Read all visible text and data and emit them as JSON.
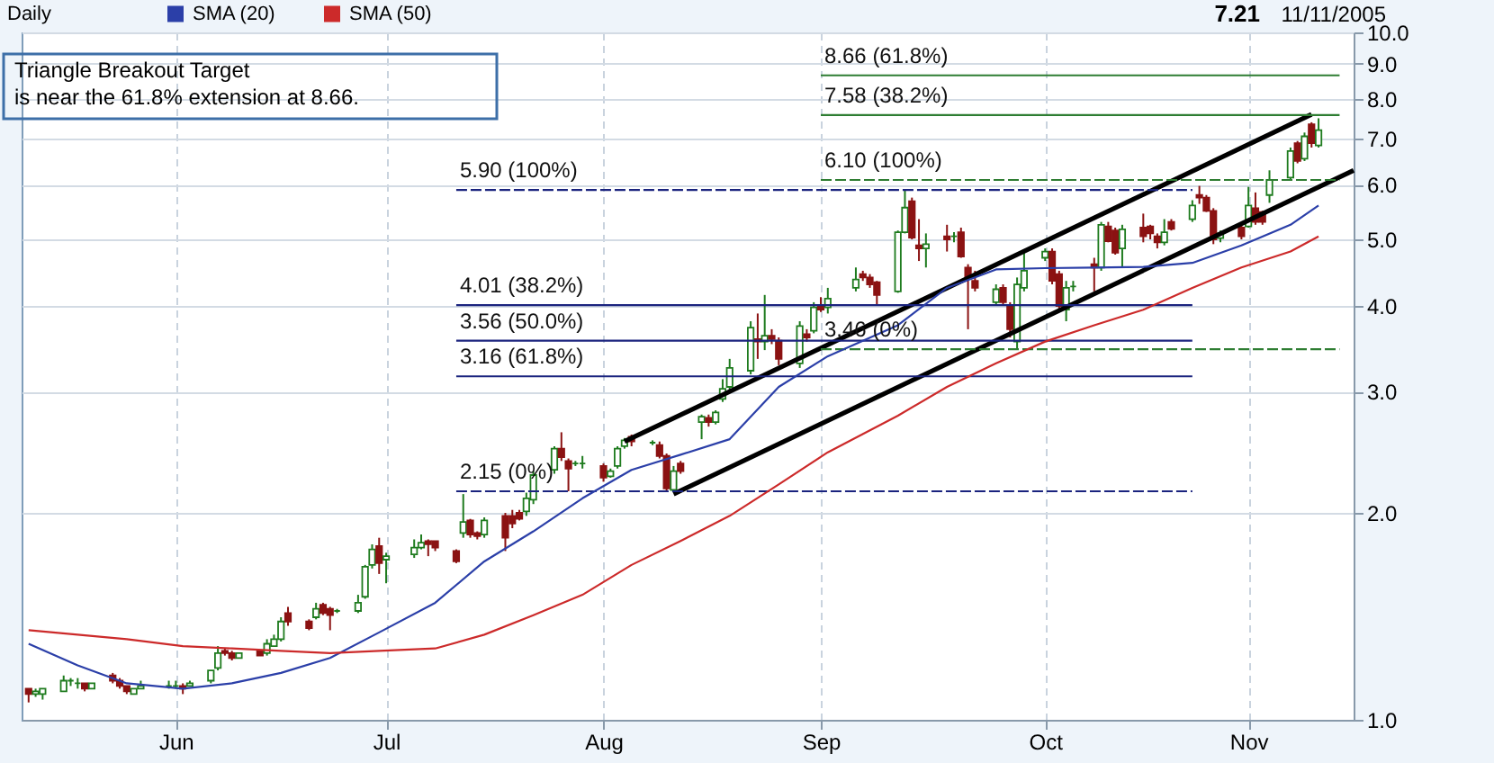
{
  "chart_data": {
    "type": "candlestick",
    "title": "Daily",
    "legend": "top left",
    "log": true,
    "grid": true,
    "xlim": [
      "2005-05-10",
      "2005-11-16"
    ],
    "xticks": [
      {
        "value": "2005-06-01",
        "label": "Jun"
      },
      {
        "value": "2005-07-01",
        "label": "Jul"
      },
      {
        "value": "2005-08-01",
        "label": "Aug"
      },
      {
        "value": "2005-09-01",
        "label": "Sep"
      },
      {
        "value": "2005-10-03",
        "label": "Oct"
      },
      {
        "value": "2005-11-01",
        "label": "Nov"
      }
    ],
    "ylim": [
      1,
      10
    ],
    "yticks": [
      {
        "value": 1,
        "label": "1.0"
      },
      {
        "value": 2,
        "label": "2.0"
      },
      {
        "value": 3,
        "label": "3.0"
      },
      {
        "value": 4,
        "label": "4.0"
      },
      {
        "value": 5,
        "label": "5.0"
      },
      {
        "value": 6,
        "label": "6.0"
      },
      {
        "value": 7,
        "label": "7.0"
      },
      {
        "value": 8,
        "label": "8.0"
      },
      {
        "value": 9,
        "label": "9.0"
      },
      {
        "value": 10,
        "label": "10.0"
      }
    ],
    "x": [
      "2005-05-11",
      "2005-05-12",
      "2005-05-13",
      "2005-05-16",
      "2005-05-17",
      "2005-05-18",
      "2005-05-19",
      "2005-05-20",
      "2005-05-23",
      "2005-05-24",
      "2005-05-25",
      "2005-05-26",
      "2005-05-27",
      "2005-05-31",
      "2005-06-01",
      "2005-06-02",
      "2005-06-03",
      "2005-06-06",
      "2005-06-07",
      "2005-06-08",
      "2005-06-09",
      "2005-06-10",
      "2005-06-13",
      "2005-06-14",
      "2005-06-15",
      "2005-06-16",
      "2005-06-17",
      "2005-06-20",
      "2005-06-21",
      "2005-06-22",
      "2005-06-23",
      "2005-06-24",
      "2005-06-27",
      "2005-06-28",
      "2005-06-29",
      "2005-06-30",
      "2005-07-01",
      "2005-07-05",
      "2005-07-06",
      "2005-07-07",
      "2005-07-08",
      "2005-07-11",
      "2005-07-12",
      "2005-07-13",
      "2005-07-14",
      "2005-07-15",
      "2005-07-18",
      "2005-07-19",
      "2005-07-20",
      "2005-07-21",
      "2005-07-22",
      "2005-07-25",
      "2005-07-26",
      "2005-07-27",
      "2005-07-28",
      "2005-07-29",
      "2005-08-01",
      "2005-08-02",
      "2005-08-03",
      "2005-08-04",
      "2005-08-05",
      "2005-08-08",
      "2005-08-09",
      "2005-08-10",
      "2005-08-11",
      "2005-08-12",
      "2005-08-15",
      "2005-08-16",
      "2005-08-17",
      "2005-08-18",
      "2005-08-19",
      "2005-08-22",
      "2005-08-23",
      "2005-08-24",
      "2005-08-25",
      "2005-08-26",
      "2005-08-29",
      "2005-08-30",
      "2005-08-31",
      "2005-09-01",
      "2005-09-02",
      "2005-09-06",
      "2005-09-07",
      "2005-09-08",
      "2005-09-09",
      "2005-09-12",
      "2005-09-13",
      "2005-09-14",
      "2005-09-15",
      "2005-09-16",
      "2005-09-19",
      "2005-09-20",
      "2005-09-21",
      "2005-09-22",
      "2005-09-23",
      "2005-09-26",
      "2005-09-27",
      "2005-09-28",
      "2005-09-29",
      "2005-09-30",
      "2005-10-03",
      "2005-10-04",
      "2005-10-05",
      "2005-10-06",
      "2005-10-07",
      "2005-10-10",
      "2005-10-11",
      "2005-10-12",
      "2005-10-13",
      "2005-10-14",
      "2005-10-17",
      "2005-10-18",
      "2005-10-19",
      "2005-10-20",
      "2005-10-21",
      "2005-10-24",
      "2005-10-25",
      "2005-10-26",
      "2005-10-27",
      "2005-10-28",
      "2005-10-31",
      "2005-11-01",
      "2005-11-02",
      "2005-11-03",
      "2005-11-04",
      "2005-11-07",
      "2005-11-08",
      "2005-11-09",
      "2005-11-10",
      "2005-11-11"
    ],
    "ohlc": [
      [
        1.11,
        1.11,
        1.06,
        1.09
      ],
      [
        1.09,
        1.11,
        1.08,
        1.1
      ],
      [
        1.09,
        1.11,
        1.07,
        1.11
      ],
      [
        1.1,
        1.16,
        1.1,
        1.14
      ],
      [
        1.14,
        1.15,
        1.12,
        1.14
      ],
      [
        1.13,
        1.15,
        1.11,
        1.13
      ],
      [
        1.13,
        1.13,
        1.1,
        1.11
      ],
      [
        1.11,
        1.13,
        1.11,
        1.13
      ],
      [
        1.16,
        1.17,
        1.13,
        1.14
      ],
      [
        1.14,
        1.15,
        1.11,
        1.12
      ],
      [
        1.12,
        1.12,
        1.09,
        1.1
      ],
      [
        1.09,
        1.11,
        1.09,
        1.11
      ],
      [
        1.11,
        1.14,
        1.11,
        1.12
      ],
      [
        1.12,
        1.14,
        1.11,
        1.12
      ],
      [
        1.12,
        1.14,
        1.11,
        1.12
      ],
      [
        1.12,
        1.13,
        1.09,
        1.11
      ],
      [
        1.12,
        1.14,
        1.12,
        1.13
      ],
      [
        1.14,
        1.18,
        1.13,
        1.18
      ],
      [
        1.19,
        1.28,
        1.18,
        1.25
      ],
      [
        1.26,
        1.27,
        1.24,
        1.25
      ],
      [
        1.25,
        1.26,
        1.22,
        1.23
      ],
      [
        1.23,
        1.25,
        1.23,
        1.25
      ],
      [
        1.26,
        1.26,
        1.24,
        1.24
      ],
      [
        1.25,
        1.31,
        1.24,
        1.29
      ],
      [
        1.28,
        1.33,
        1.28,
        1.31
      ],
      [
        1.31,
        1.41,
        1.3,
        1.39
      ],
      [
        1.43,
        1.46,
        1.37,
        1.39
      ],
      [
        1.39,
        1.4,
        1.35,
        1.36
      ],
      [
        1.41,
        1.48,
        1.4,
        1.45
      ],
      [
        1.47,
        1.48,
        1.42,
        1.43
      ],
      [
        1.45,
        1.46,
        1.35,
        1.42
      ],
      [
        1.44,
        1.45,
        1.43,
        1.44
      ],
      [
        1.44,
        1.52,
        1.43,
        1.48
      ],
      [
        1.51,
        1.68,
        1.5,
        1.67
      ],
      [
        1.68,
        1.8,
        1.66,
        1.77
      ],
      [
        1.79,
        1.84,
        1.63,
        1.69
      ],
      [
        1.71,
        1.75,
        1.58,
        1.73
      ],
      [
        1.74,
        1.83,
        1.72,
        1.78
      ],
      [
        1.78,
        1.86,
        1.77,
        1.81
      ],
      [
        1.82,
        1.83,
        1.73,
        1.8
      ],
      [
        1.82,
        1.82,
        1.76,
        1.78
      ],
      [
        1.76,
        1.77,
        1.69,
        1.7
      ],
      [
        1.87,
        2.13,
        1.84,
        1.94
      ],
      [
        1.95,
        1.96,
        1.84,
        1.86
      ],
      [
        1.87,
        1.88,
        1.83,
        1.85
      ],
      [
        1.86,
        1.97,
        1.84,
        1.95
      ],
      [
        1.98,
        2.0,
        1.76,
        1.84
      ],
      [
        1.98,
        2.02,
        1.9,
        1.93
      ],
      [
        2.0,
        2.02,
        1.95,
        1.96
      ],
      [
        2.01,
        2.14,
        1.98,
        2.1
      ],
      [
        2.09,
        2.3,
        2.06,
        2.27
      ],
      [
        2.31,
        2.5,
        2.28,
        2.48
      ],
      [
        2.48,
        2.62,
        2.38,
        2.41
      ],
      [
        2.38,
        2.4,
        2.15,
        2.32
      ],
      [
        2.36,
        2.38,
        2.34,
        2.36
      ],
      [
        2.36,
        2.42,
        2.32,
        2.36
      ],
      [
        2.34,
        2.36,
        2.22,
        2.25
      ],
      [
        2.26,
        2.32,
        2.25,
        2.3
      ],
      [
        2.34,
        2.5,
        2.32,
        2.48
      ],
      [
        2.5,
        2.57,
        2.48,
        2.55
      ],
      [
        2.58,
        2.6,
        2.5,
        2.54
      ],
      [
        2.53,
        2.55,
        2.51,
        2.53
      ],
      [
        2.51,
        2.54,
        2.4,
        2.42
      ],
      [
        2.42,
        2.44,
        2.15,
        2.17
      ],
      [
        2.16,
        2.34,
        2.15,
        2.3
      ],
      [
        2.36,
        2.38,
        2.28,
        2.3
      ],
      [
        2.71,
        2.78,
        2.56,
        2.76
      ],
      [
        2.75,
        2.78,
        2.67,
        2.71
      ],
      [
        2.71,
        2.82,
        2.69,
        2.8
      ],
      [
        2.93,
        3.13,
        2.9,
        3.03
      ],
      [
        3.05,
        3.35,
        3.0,
        3.25
      ],
      [
        3.22,
        3.8,
        3.18,
        3.72
      ],
      [
        3.58,
        3.9,
        3.35,
        3.55
      ],
      [
        3.55,
        4.15,
        3.45,
        3.62
      ],
      [
        3.62,
        3.7,
        3.52,
        3.58
      ],
      [
        3.56,
        3.6,
        3.28,
        3.35
      ],
      [
        3.3,
        3.8,
        3.25,
        3.74
      ],
      [
        3.64,
        3.7,
        3.55,
        3.6
      ],
      [
        3.68,
        4.05,
        3.65,
        3.98
      ],
      [
        4.0,
        4.12,
        3.92,
        3.95
      ],
      [
        3.98,
        4.25,
        3.9,
        4.1
      ],
      [
        4.25,
        4.55,
        4.2,
        4.37
      ],
      [
        4.45,
        4.5,
        4.35,
        4.4
      ],
      [
        4.4,
        4.45,
        4.25,
        4.3
      ],
      [
        4.33,
        4.35,
        4.0,
        4.15
      ],
      [
        4.2,
        5.15,
        4.18,
        5.12
      ],
      [
        5.12,
        5.9,
        5.1,
        5.56
      ],
      [
        5.68,
        5.75,
        5.0,
        5.03
      ],
      [
        4.9,
        5.35,
        4.65,
        4.85
      ],
      [
        4.85,
        5.1,
        4.55,
        4.92
      ],
      [
        5.05,
        5.25,
        4.8,
        5.0
      ],
      [
        5.05,
        5.12,
        4.95,
        5.05
      ],
      [
        5.12,
        5.2,
        4.7,
        4.72
      ],
      [
        4.55,
        4.6,
        3.7,
        4.4
      ],
      [
        4.35,
        4.5,
        4.2,
        4.25
      ],
      [
        4.05,
        4.3,
        4.0,
        4.23
      ],
      [
        4.25,
        4.3,
        4.0,
        4.05
      ],
      [
        4.0,
        4.05,
        3.6,
        3.7
      ],
      [
        3.55,
        4.4,
        3.46,
        4.3
      ],
      [
        4.25,
        4.8,
        4.2,
        4.5
      ],
      [
        4.7,
        4.85,
        4.65,
        4.8
      ],
      [
        4.8,
        4.85,
        4.3,
        4.35
      ],
      [
        4.45,
        4.5,
        3.95,
        4.0
      ],
      [
        3.95,
        4.35,
        3.8,
        4.25
      ],
      [
        4.27,
        4.35,
        4.2,
        4.27
      ],
      [
        4.6,
        4.7,
        4.2,
        4.55
      ],
      [
        4.55,
        5.3,
        4.5,
        5.25
      ],
      [
        5.22,
        5.3,
        4.95,
        4.97
      ],
      [
        5.15,
        5.2,
        4.75,
        4.78
      ],
      [
        4.85,
        5.25,
        4.55,
        5.17
      ],
      [
        5.2,
        5.45,
        4.95,
        5.05
      ],
      [
        5.22,
        5.25,
        5.0,
        5.1
      ],
      [
        5.05,
        5.1,
        4.85,
        4.95
      ],
      [
        4.95,
        5.35,
        4.9,
        5.12
      ],
      [
        5.3,
        5.35,
        5.15,
        5.18
      ],
      [
        5.35,
        5.7,
        5.3,
        5.6
      ],
      [
        5.8,
        5.98,
        5.63,
        5.75
      ],
      [
        5.75,
        5.8,
        5.48,
        5.5
      ],
      [
        5.5,
        5.55,
        4.92,
        5.0
      ],
      [
        5.02,
        5.15,
        4.95,
        5.1
      ],
      [
        5.2,
        5.25,
        5.0,
        5.05
      ],
      [
        5.22,
        5.96,
        5.2,
        5.6
      ],
      [
        5.55,
        5.85,
        5.25,
        5.3
      ],
      [
        5.48,
        5.5,
        5.25,
        5.3
      ],
      [
        5.8,
        6.3,
        5.65,
        6.1
      ],
      [
        6.15,
        6.8,
        6.1,
        6.72
      ],
      [
        6.9,
        6.95,
        6.45,
        6.5
      ],
      [
        6.55,
        7.15,
        6.5,
        7.06
      ],
      [
        7.35,
        7.4,
        6.8,
        6.9
      ],
      [
        6.85,
        7.5,
        6.8,
        7.21
      ]
    ],
    "series": [
      {
        "type": "line",
        "name": "SMA (20)",
        "color": "#2b3fa8",
        "x": [
          "2005-05-11",
          "2005-05-18",
          "2005-05-25",
          "2005-06-02",
          "2005-06-09",
          "2005-06-16",
          "2005-06-23",
          "2005-06-30",
          "2005-07-08",
          "2005-07-15",
          "2005-07-22",
          "2005-07-29",
          "2005-08-05",
          "2005-08-12",
          "2005-08-19",
          "2005-08-26",
          "2005-09-02",
          "2005-09-12",
          "2005-09-19",
          "2005-09-26",
          "2005-10-03",
          "2005-10-10",
          "2005-10-17",
          "2005-10-24",
          "2005-10-31",
          "2005-11-07",
          "2005-11-11"
        ],
        "values": [
          1.29,
          1.2,
          1.13,
          1.11,
          1.13,
          1.17,
          1.23,
          1.34,
          1.48,
          1.7,
          1.88,
          2.1,
          2.31,
          2.43,
          2.56,
          3.05,
          3.38,
          3.75,
          4.25,
          4.52,
          4.54,
          4.55,
          4.56,
          4.62,
          4.9,
          5.25,
          5.6
        ]
      },
      {
        "type": "line",
        "name": "SMA (50)",
        "color": "#cc2a2a",
        "x": [
          "2005-05-11",
          "2005-05-18",
          "2005-05-25",
          "2005-06-02",
          "2005-06-09",
          "2005-06-16",
          "2005-06-23",
          "2005-06-30",
          "2005-07-08",
          "2005-07-15",
          "2005-07-22",
          "2005-07-29",
          "2005-08-05",
          "2005-08-12",
          "2005-08-19",
          "2005-08-26",
          "2005-09-02",
          "2005-09-12",
          "2005-09-19",
          "2005-09-26",
          "2005-10-03",
          "2005-10-10",
          "2005-10-17",
          "2005-10-24",
          "2005-10-31",
          "2005-11-07",
          "2005-11-11"
        ],
        "values": [
          1.35,
          1.33,
          1.31,
          1.28,
          1.27,
          1.26,
          1.25,
          1.26,
          1.27,
          1.33,
          1.42,
          1.52,
          1.68,
          1.82,
          1.98,
          2.2,
          2.45,
          2.77,
          3.05,
          3.3,
          3.55,
          3.75,
          3.95,
          4.25,
          4.55,
          4.8,
          5.05
        ]
      },
      {
        "type": "line",
        "color": "#000000",
        "line_style": "solid",
        "x": [
          "2005-08-04",
          "2005-11-10"
        ],
        "values": [
          2.54,
          7.6
        ]
      },
      {
        "type": "line",
        "color": "#000000",
        "line_style": "solid",
        "x": [
          "2005-08-11",
          "2005-11-16"
        ],
        "values": [
          2.13,
          6.3
        ]
      },
      {
        "type": "line",
        "color": "#1a237e",
        "line_style": "dashed",
        "x": [
          "2005-07-11",
          "2005-10-24"
        ],
        "values": [
          5.9,
          5.9
        ]
      },
      {
        "type": "line",
        "color": "#1a237e",
        "line_style": "solid",
        "x": [
          "2005-07-11",
          "2005-10-24"
        ],
        "values": [
          4.01,
          4.01
        ]
      },
      {
        "type": "line",
        "color": "#1a237e",
        "line_style": "solid",
        "x": [
          "2005-07-11",
          "2005-10-24"
        ],
        "values": [
          3.56,
          3.56
        ]
      },
      {
        "type": "line",
        "color": "#1a237e",
        "line_style": "solid",
        "x": [
          "2005-07-11",
          "2005-10-24"
        ],
        "values": [
          3.16,
          3.16
        ]
      },
      {
        "type": "line",
        "color": "#1a237e",
        "line_style": "dashed",
        "x": [
          "2005-07-11",
          "2005-10-24"
        ],
        "values": [
          2.15,
          2.15
        ]
      },
      {
        "type": "line",
        "color": "#2e7d32",
        "line_style": "solid",
        "x": [
          "2005-09-01",
          "2005-11-14"
        ],
        "values": [
          8.66,
          8.66
        ]
      },
      {
        "type": "line",
        "color": "#2e7d32",
        "line_style": "solid",
        "x": [
          "2005-09-01",
          "2005-11-14"
        ],
        "values": [
          7.58,
          7.58
        ]
      },
      {
        "type": "line",
        "color": "#2e7d32",
        "line_style": "dashed",
        "x": [
          "2005-09-01",
          "2005-11-14"
        ],
        "values": [
          6.1,
          6.1
        ]
      },
      {
        "type": "line",
        "color": "#2e7d32",
        "line_style": "dashed",
        "x": [
          "2005-09-01",
          "2005-11-14"
        ],
        "values": [
          3.46,
          3.46
        ]
      }
    ],
    "annotations": [
      "Triangle Breakout Target\nis near the 61.8% extension at 8.66.",
      "7.21",
      "11/11/2005",
      {
        "text": "5.90 (100%)",
        "x": "2005-07-11",
        "y": 5.9
      },
      {
        "text": "4.01 (38.2%)",
        "x": "2005-07-11",
        "y": 4.01
      },
      {
        "text": "3.56 (50.0%)",
        "x": "2005-07-11",
        "y": 3.56
      },
      {
        "text": "3.16 (61.8%)",
        "x": "2005-07-11",
        "y": 3.16
      },
      {
        "text": "2.15 (0%)",
        "x": "2005-07-11",
        "y": 2.15
      },
      {
        "text": "8.66 (61.8%)",
        "x": "2005-09-01",
        "y": 8.66
      },
      {
        "text": "7.58 (38.2%)",
        "x": "2005-09-01",
        "y": 7.58
      },
      {
        "text": "6.10 (100%)",
        "x": "2005-09-01",
        "y": 6.1
      },
      {
        "text": "3.46 (0%)",
        "x": "2005-09-01",
        "y": 3.46
      }
    ]
  }
}
